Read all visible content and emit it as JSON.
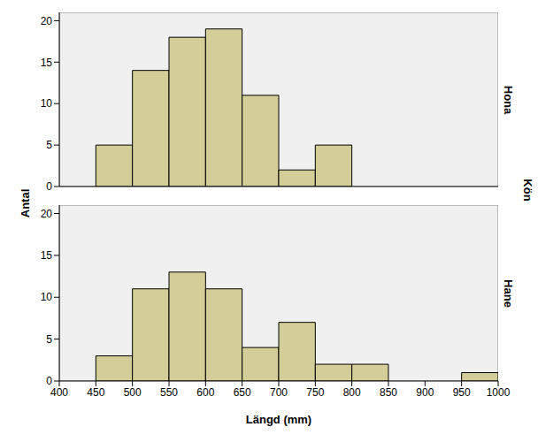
{
  "chart_data": {
    "type": "histogram",
    "xlabel": "Längd (mm)",
    "ylabel": "Antal",
    "facet_label": "Kön",
    "bins": [
      400,
      450,
      500,
      550,
      600,
      650,
      700,
      750,
      800,
      850,
      900,
      950,
      1000
    ],
    "series": [
      {
        "name": "Hona",
        "color": "#d3ce97",
        "values": [
          0,
          5,
          14,
          18,
          19,
          11,
          2,
          5,
          0,
          0,
          0,
          0
        ]
      },
      {
        "name": "Hane",
        "color": "#d3ce97",
        "values": [
          0,
          3,
          11,
          13,
          11,
          4,
          7,
          2,
          2,
          0,
          0,
          1
        ]
      }
    ],
    "xlim": [
      400,
      1000
    ],
    "xticks": [
      400,
      450,
      500,
      550,
      600,
      650,
      700,
      750,
      800,
      850,
      900,
      950,
      1000
    ],
    "ylim": [
      0,
      21
    ],
    "yticks": [
      0,
      5,
      10,
      15,
      20
    ],
    "grid": false
  }
}
